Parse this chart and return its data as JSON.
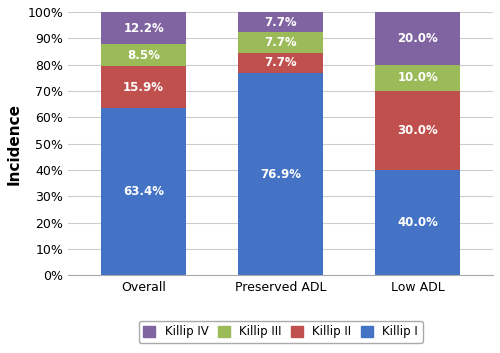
{
  "categories": [
    "Overall",
    "Preserved ADL",
    "Low ADL"
  ],
  "series": {
    "Killip I": [
      63.4,
      76.9,
      40.0
    ],
    "Killip II": [
      15.9,
      7.7,
      30.0
    ],
    "Killip III": [
      8.5,
      7.7,
      10.0
    ],
    "Killip IV": [
      12.2,
      7.7,
      20.0
    ]
  },
  "colors": {
    "Killip I": "#4472C4",
    "Killip II": "#C0504D",
    "Killip III": "#9BBB59",
    "Killip IV": "#8064A2"
  },
  "ylabel": "Incidence",
  "ylim": [
    0,
    100
  ],
  "ytick_labels": [
    "0%",
    "10%",
    "20%",
    "30%",
    "40%",
    "50%",
    "60%",
    "70%",
    "80%",
    "90%",
    "100%"
  ],
  "ytick_values": [
    0,
    10,
    20,
    30,
    40,
    50,
    60,
    70,
    80,
    90,
    100
  ],
  "bar_width": 0.62,
  "label_fontsize": 8.5,
  "legend_fontsize": 8.5,
  "ylabel_fontsize": 11,
  "tick_fontsize": 9
}
